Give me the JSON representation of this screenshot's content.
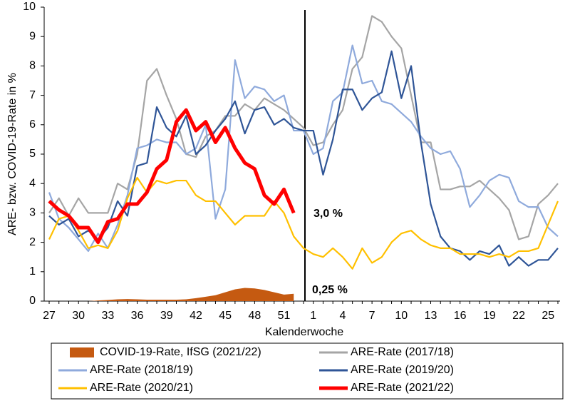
{
  "chart_data": {
    "type": "line",
    "y_label": "ARE- bzw. COVID-19-Rate in %",
    "x_label": "Kalenderwoche",
    "categories": [
      "27",
      null,
      null,
      "30",
      null,
      null,
      "33",
      null,
      null,
      "36",
      null,
      null,
      "39",
      null,
      null,
      "42",
      null,
      null,
      "45",
      null,
      null,
      "48",
      null,
      null,
      "51",
      null,
      null,
      "1",
      null,
      null,
      "4",
      null,
      null,
      "7",
      null,
      null,
      "10",
      null,
      null,
      "13",
      null,
      null,
      "16",
      null,
      null,
      "19",
      null,
      null,
      "22",
      null,
      null,
      "25",
      null
    ],
    "ylim": [
      0,
      10
    ],
    "yticks": [
      0,
      1,
      2,
      3,
      4,
      5,
      6,
      7,
      8,
      9,
      10
    ],
    "annotations": [
      "3,0 %",
      "0,25 %"
    ],
    "series": [
      {
        "name": "COVID-19-Rate, IfSG (2021/22)",
        "type": "area",
        "color": "#c55a11",
        "values": [
          0,
          0,
          0,
          0,
          0,
          0.02,
          0.04,
          0.06,
          0.07,
          0.06,
          0.05,
          0.05,
          0.05,
          0.05,
          0.06,
          0.1,
          0.15,
          0.2,
          0.3,
          0.4,
          0.45,
          0.43,
          0.38,
          0.3,
          0.22,
          0.25,
          null,
          null,
          null,
          null,
          null,
          null,
          null,
          null,
          null,
          null,
          null,
          null,
          null,
          null,
          null,
          null,
          null,
          null,
          null,
          null,
          null,
          null,
          null,
          null,
          null,
          null,
          null
        ]
      },
      {
        "name": "ARE-Rate (2017/18)",
        "type": "line",
        "color": "#a5a5a5",
        "values": [
          3.0,
          3.5,
          2.9,
          3.5,
          3.0,
          3.0,
          3.0,
          4.0,
          3.8,
          5.0,
          7.5,
          7.9,
          7.0,
          6.2,
          5.0,
          4.9,
          5.6,
          5.8,
          6.3,
          6.3,
          6.7,
          6.5,
          6.9,
          6.7,
          6.5,
          6.2,
          5.9,
          5.3,
          5.4,
          6.0,
          6.5,
          7.9,
          8.3,
          9.7,
          9.5,
          9.0,
          8.6,
          7.0,
          5.4,
          5.4,
          3.8,
          3.8,
          3.9,
          3.9,
          4.1,
          3.8,
          3.5,
          3.1,
          2.1,
          2.2,
          3.3,
          3.6,
          4.0
        ]
      },
      {
        "name": "ARE-Rate (2018/19)",
        "type": "line",
        "color": "#8faadc",
        "values": [
          3.7,
          2.8,
          2.5,
          2.1,
          1.7,
          2.3,
          1.8,
          2.6,
          3.6,
          5.2,
          5.3,
          5.5,
          5.4,
          5.4,
          5.0,
          5.2,
          6.0,
          2.8,
          3.8,
          8.2,
          6.9,
          7.3,
          7.2,
          6.8,
          7.0,
          5.8,
          5.8,
          5.0,
          5.2,
          6.8,
          7.1,
          8.7,
          7.4,
          7.5,
          6.8,
          6.7,
          6.4,
          6.1,
          5.6,
          5.2,
          5.0,
          5.1,
          4.5,
          3.2,
          3.6,
          4.1,
          4.3,
          4.2,
          3.4,
          3.2,
          3.2,
          2.5,
          2.2
        ]
      },
      {
        "name": "ARE-Rate (2019/20)",
        "type": "line",
        "color": "#2f5597",
        "values": [
          2.9,
          2.6,
          2.8,
          2.2,
          2.4,
          2.1,
          2.5,
          3.4,
          2.9,
          4.6,
          4.7,
          6.6,
          5.9,
          5.6,
          6.3,
          5.0,
          5.3,
          5.8,
          6.2,
          6.8,
          5.7,
          6.5,
          6.6,
          6.0,
          6.2,
          5.9,
          5.8,
          5.8,
          4.3,
          5.5,
          7.2,
          7.2,
          6.5,
          6.9,
          7.1,
          8.5,
          6.9,
          8.0,
          5.4,
          3.3,
          2.2,
          1.8,
          1.7,
          1.4,
          1.7,
          1.6,
          1.9,
          1.2,
          1.5,
          1.2,
          1.4,
          1.4,
          1.8
        ]
      },
      {
        "name": "ARE-Rate (2020/21)",
        "type": "line",
        "color": "#ffc000",
        "values": [
          2.1,
          2.8,
          2.9,
          2.4,
          1.8,
          1.9,
          1.8,
          2.4,
          3.5,
          4.2,
          3.7,
          4.1,
          4.0,
          4.1,
          4.1,
          3.6,
          3.4,
          3.4,
          3.0,
          2.6,
          2.9,
          2.9,
          2.9,
          3.4,
          3.0,
          2.2,
          1.8,
          1.6,
          1.5,
          1.8,
          1.5,
          1.1,
          1.8,
          1.3,
          1.5,
          2.0,
          2.3,
          2.4,
          2.1,
          1.9,
          1.8,
          1.8,
          1.6,
          1.6,
          1.6,
          1.5,
          1.6,
          1.5,
          1.7,
          1.7,
          1.8,
          2.6,
          3.4
        ]
      },
      {
        "name": "ARE-Rate (2021/22)",
        "type": "line",
        "color": "#ff0000",
        "width": 5,
        "values": [
          3.4,
          3.1,
          2.9,
          2.5,
          2.5,
          2.0,
          2.7,
          2.8,
          3.3,
          3.3,
          3.7,
          4.5,
          4.8,
          6.1,
          6.5,
          5.8,
          6.1,
          5.4,
          5.9,
          5.2,
          4.7,
          4.5,
          3.6,
          3.3,
          3.8,
          3.0,
          null,
          null,
          null,
          null,
          null,
          null,
          null,
          null,
          null,
          null,
          null,
          null,
          null,
          null,
          null,
          null,
          null,
          null,
          null,
          null,
          null,
          null,
          null,
          null,
          null,
          null,
          null
        ]
      }
    ]
  }
}
